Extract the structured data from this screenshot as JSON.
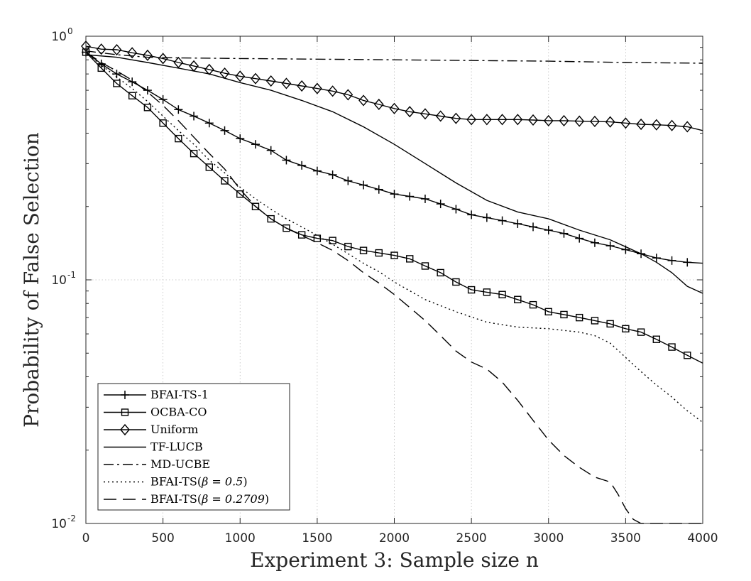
{
  "chart_data": {
    "type": "line",
    "title": "",
    "xlabel": "Experiment 3: Sample size n",
    "ylabel": "Probability of False Selection",
    "xlim": [
      0,
      4000
    ],
    "ylim": [
      0.01,
      1
    ],
    "yscale": "log",
    "grid": true,
    "legend_position": "bottom-left",
    "x_ticks": [
      0,
      500,
      1000,
      1500,
      2000,
      2500,
      3000,
      3500,
      4000
    ],
    "x_tick_labels": [
      "0",
      "500",
      "1000",
      "1500",
      "2000",
      "2500",
      "3000",
      "3500",
      "4000"
    ],
    "y_ticks": [
      {
        "value": 1,
        "base": "10",
        "exp": "0"
      },
      {
        "value": 0.1,
        "base": "10",
        "exp": "-1"
      },
      {
        "value": 0.01,
        "base": "10",
        "exp": "-2"
      }
    ],
    "series": [
      {
        "name": "BFAI-TS-1",
        "style": "solid",
        "marker": "plus",
        "x": [
          0,
          100,
          200,
          300,
          400,
          500,
          600,
          700,
          800,
          900,
          1000,
          1100,
          1200,
          1300,
          1400,
          1500,
          1600,
          1700,
          1800,
          1900,
          2000,
          2100,
          2200,
          2300,
          2400,
          2500,
          2600,
          2700,
          2800,
          2900,
          3000,
          3100,
          3200,
          3300,
          3400,
          3500,
          3600,
          3700,
          3800,
          3900,
          4000
        ],
        "y": [
          0.86,
          0.77,
          0.7,
          0.65,
          0.6,
          0.55,
          0.5,
          0.47,
          0.44,
          0.41,
          0.38,
          0.36,
          0.34,
          0.31,
          0.295,
          0.28,
          0.27,
          0.255,
          0.245,
          0.235,
          0.225,
          0.22,
          0.215,
          0.205,
          0.195,
          0.185,
          0.18,
          0.175,
          0.17,
          0.165,
          0.16,
          0.155,
          0.148,
          0.142,
          0.138,
          0.133,
          0.128,
          0.123,
          0.12,
          0.118,
          0.117
        ],
        "marker_x": [
          0,
          100,
          200,
          300,
          400,
          500,
          600,
          700,
          800,
          900,
          1000,
          1100,
          1200,
          1300,
          1400,
          1500,
          1600,
          1700,
          1800,
          1900,
          2000,
          2100,
          2200,
          2300,
          2400,
          2500,
          2600,
          2700,
          2800,
          2900,
          3000,
          3100,
          3200,
          3300,
          3400,
          3500,
          3600,
          3700,
          3800,
          3900
        ]
      },
      {
        "name": "OCBA-CO",
        "style": "solid",
        "marker": "square",
        "x": [
          0,
          100,
          200,
          300,
          400,
          500,
          600,
          700,
          800,
          900,
          1000,
          1100,
          1200,
          1300,
          1400,
          1500,
          1600,
          1700,
          1800,
          1900,
          2000,
          2100,
          2200,
          2300,
          2400,
          2500,
          2600,
          2700,
          2800,
          2900,
          3000,
          3100,
          3200,
          3300,
          3400,
          3500,
          3600,
          3700,
          3800,
          3900,
          4000
        ],
        "y": [
          0.86,
          0.74,
          0.64,
          0.57,
          0.51,
          0.44,
          0.38,
          0.33,
          0.29,
          0.255,
          0.225,
          0.2,
          0.178,
          0.163,
          0.153,
          0.148,
          0.145,
          0.137,
          0.132,
          0.129,
          0.126,
          0.122,
          0.114,
          0.107,
          0.098,
          0.091,
          0.089,
          0.087,
          0.083,
          0.079,
          0.074,
          0.072,
          0.07,
          0.068,
          0.066,
          0.063,
          0.061,
          0.057,
          0.053,
          0.049,
          0.0455
        ],
        "marker_x": [
          0,
          100,
          200,
          300,
          400,
          500,
          600,
          700,
          800,
          900,
          1000,
          1100,
          1200,
          1300,
          1400,
          1500,
          1600,
          1700,
          1800,
          1900,
          2000,
          2100,
          2200,
          2300,
          2400,
          2500,
          2600,
          2700,
          2800,
          2900,
          3000,
          3100,
          3200,
          3300,
          3400,
          3500,
          3600,
          3700,
          3800,
          3900
        ]
      },
      {
        "name": "Uniform",
        "style": "solid",
        "marker": "diamond",
        "x": [
          0,
          100,
          200,
          300,
          400,
          500,
          600,
          700,
          800,
          900,
          1000,
          1100,
          1200,
          1300,
          1400,
          1500,
          1600,
          1700,
          1800,
          1900,
          2000,
          2100,
          2200,
          2300,
          2400,
          2500,
          2600,
          2700,
          2800,
          2900,
          3000,
          3100,
          3200,
          3300,
          3400,
          3500,
          3600,
          3700,
          3800,
          3900,
          4000
        ],
        "y": [
          0.91,
          0.885,
          0.88,
          0.855,
          0.835,
          0.81,
          0.78,
          0.755,
          0.73,
          0.705,
          0.685,
          0.67,
          0.655,
          0.64,
          0.625,
          0.61,
          0.595,
          0.575,
          0.545,
          0.525,
          0.505,
          0.49,
          0.48,
          0.47,
          0.46,
          0.455,
          0.455,
          0.455,
          0.455,
          0.453,
          0.45,
          0.45,
          0.448,
          0.447,
          0.445,
          0.44,
          0.435,
          0.433,
          0.43,
          0.425,
          0.41
        ],
        "marker_x": [
          0,
          100,
          200,
          300,
          400,
          500,
          600,
          700,
          800,
          900,
          1000,
          1100,
          1200,
          1300,
          1400,
          1500,
          1600,
          1700,
          1800,
          1900,
          2000,
          2100,
          2200,
          2300,
          2400,
          2500,
          2600,
          2700,
          2800,
          2900,
          3000,
          3100,
          3200,
          3300,
          3400,
          3500,
          3600,
          3700,
          3800,
          3900
        ]
      },
      {
        "name": "TF-LUCB",
        "style": "solid",
        "marker": "none",
        "x": [
          0,
          200,
          400,
          600,
          800,
          1000,
          1200,
          1400,
          1600,
          1800,
          2000,
          2200,
          2400,
          2600,
          2800,
          3000,
          3200,
          3400,
          3600,
          3700,
          3800,
          3900,
          4000
        ],
        "y": [
          0.84,
          0.82,
          0.78,
          0.74,
          0.7,
          0.645,
          0.6,
          0.545,
          0.49,
          0.425,
          0.36,
          0.3,
          0.25,
          0.212,
          0.19,
          0.178,
          0.16,
          0.146,
          0.128,
          0.118,
          0.107,
          0.094,
          0.088
        ],
        "marker_x": []
      },
      {
        "name": "MD-UCBE",
        "style": "dashdot",
        "marker": "none",
        "x": [
          0,
          200,
          400,
          600,
          1000,
          1500,
          2000,
          2500,
          3000,
          3500,
          4000
        ],
        "y": [
          0.87,
          0.84,
          0.82,
          0.815,
          0.81,
          0.805,
          0.8,
          0.795,
          0.79,
          0.78,
          0.775
        ],
        "marker_x": []
      },
      {
        "name": "BFAI-TS(β = 0.5)",
        "legend_text": "BFAI-TS(",
        "legend_math": "β = 0.5",
        "legend_text_end": ")",
        "style": "dotted",
        "marker": "none",
        "x": [
          0,
          100,
          200,
          300,
          400,
          500,
          600,
          700,
          800,
          900,
          1000,
          1100,
          1200,
          1300,
          1400,
          1500,
          1600,
          1700,
          1800,
          1900,
          2000,
          2200,
          2400,
          2600,
          2800,
          3000,
          3200,
          3300,
          3400,
          3500,
          3600,
          3700,
          3800,
          3900,
          4000
        ],
        "y": [
          0.86,
          0.76,
          0.68,
          0.61,
          0.54,
          0.47,
          0.41,
          0.36,
          0.31,
          0.275,
          0.24,
          0.215,
          0.195,
          0.178,
          0.165,
          0.152,
          0.14,
          0.128,
          0.117,
          0.108,
          0.098,
          0.083,
          0.074,
          0.067,
          0.064,
          0.063,
          0.061,
          0.059,
          0.055,
          0.048,
          0.042,
          0.037,
          0.033,
          0.029,
          0.026
        ],
        "marker_x": []
      },
      {
        "name": "BFAI-TS(β = 0.2709)",
        "legend_text": "BFAI-TS(",
        "legend_math": "β = 0.2709",
        "legend_text_end": ")",
        "style": "dashed",
        "marker": "none",
        "x": [
          0,
          100,
          200,
          300,
          400,
          500,
          600,
          700,
          800,
          900,
          1000,
          1100,
          1200,
          1300,
          1400,
          1500,
          1600,
          1700,
          1800,
          1900,
          2000,
          2100,
          2200,
          2300,
          2400,
          2500,
          2600,
          2700,
          2800,
          2900,
          3000,
          3100,
          3200,
          3300,
          3400,
          3450,
          3500,
          3550,
          3600,
          3700,
          3800,
          3900,
          4000
        ],
        "y": [
          0.86,
          0.78,
          0.72,
          0.66,
          0.59,
          0.52,
          0.45,
          0.385,
          0.33,
          0.285,
          0.235,
          0.2,
          0.178,
          0.163,
          0.152,
          0.142,
          0.132,
          0.12,
          0.107,
          0.097,
          0.087,
          0.077,
          0.068,
          0.059,
          0.051,
          0.046,
          0.043,
          0.038,
          0.032,
          0.0265,
          0.022,
          0.019,
          0.017,
          0.0155,
          0.0148,
          0.0132,
          0.0115,
          0.0104,
          0.01,
          0.01,
          0.01,
          0.01,
          0.01
        ],
        "marker_x": []
      }
    ]
  }
}
